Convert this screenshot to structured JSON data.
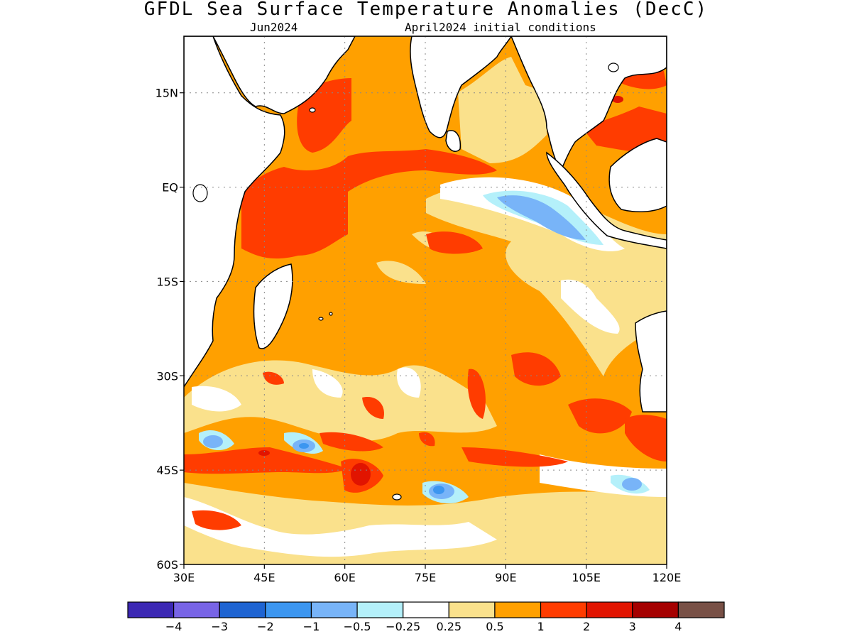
{
  "title": "GFDL Sea Surface Temperature Anomalies (DecC)",
  "subtitle_left": "Jun2024",
  "subtitle_right": "April2024 initial conditions",
  "map": {
    "lon_range": [
      30,
      120
    ],
    "lat_range": [
      -60,
      24
    ],
    "grid": true,
    "lat_ticks": [
      {
        "value": 15,
        "label": "15N"
      },
      {
        "value": 0,
        "label": "EQ"
      },
      {
        "value": -15,
        "label": "15S"
      },
      {
        "value": -30,
        "label": "30S"
      },
      {
        "value": -45,
        "label": "45S"
      },
      {
        "value": -60,
        "label": "60S"
      }
    ],
    "lon_ticks": [
      {
        "value": 30,
        "label": "30E"
      },
      {
        "value": 45,
        "label": "45E"
      },
      {
        "value": 60,
        "label": "60E"
      },
      {
        "value": 75,
        "label": "75E"
      },
      {
        "value": 90,
        "label": "90E"
      },
      {
        "value": 105,
        "label": "105E"
      },
      {
        "value": 120,
        "label": "120E"
      }
    ]
  },
  "colorbar": {
    "colors": [
      "#3c28b4",
      "#7864e6",
      "#1e64d2",
      "#3c96f0",
      "#78b4f8",
      "#b4f0fa",
      "#ffffff",
      "#fae18c",
      "#ffa000",
      "#ff3c00",
      "#e11400",
      "#a50000",
      "#785046"
    ],
    "labels": [
      "-4",
      "-3",
      "-2",
      "-1",
      "-0.5",
      "-0.25",
      "0.25",
      "0.5",
      "1",
      "2",
      "3",
      "4"
    ]
  }
}
